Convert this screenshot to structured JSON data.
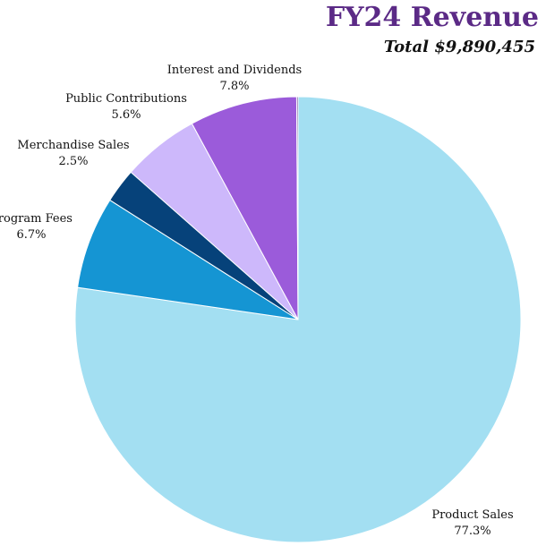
{
  "chart_data": {
    "type": "pie",
    "title": "FY24 Revenue",
    "subtitle": "Total $9,890,455",
    "start": "12 o'clock",
    "direction": "clockwise",
    "slices": [
      {
        "label": "Product Sales",
        "percent_label": "77.3%",
        "value": 77.3,
        "color": "#a3dff2"
      },
      {
        "label": "Program Fees",
        "percent_label": "6.7%",
        "value": 6.7,
        "color": "#1595d3"
      },
      {
        "label": "Merchandise Sales",
        "percent_label": "2.5%",
        "value": 2.5,
        "color": "#06427a"
      },
      {
        "label": "Public Contributions",
        "percent_label": "5.6%",
        "value": 5.6,
        "color": "#cdb8fb"
      },
      {
        "label": "Interest and Dividends",
        "percent_label": "7.8%",
        "value": 7.8,
        "color": "#9b5bda"
      },
      {
        "label": "",
        "percent_label": "",
        "value": 0.1,
        "color": "#5b2a86"
      }
    ]
  }
}
